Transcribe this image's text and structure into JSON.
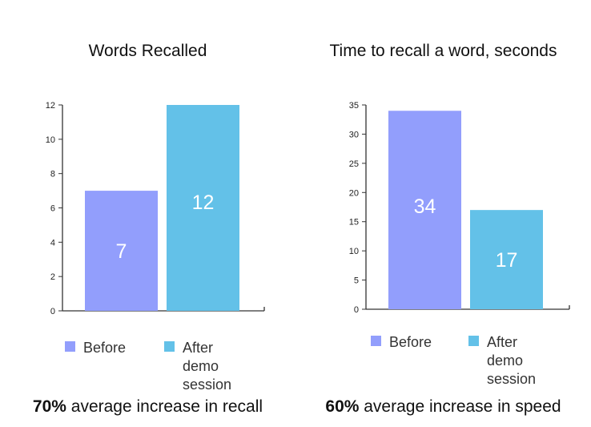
{
  "colors": {
    "before": "#929efc",
    "after": "#63c1e8",
    "axis": "#333333",
    "bar_label": "#ffffff"
  },
  "chart_data": [
    {
      "type": "bar",
      "title": "Words Recalled",
      "categories": [
        "Before",
        "After demo session"
      ],
      "values": [
        7,
        12
      ],
      "data_labels": [
        "7",
        "12"
      ],
      "ylim": [
        0,
        12
      ],
      "yticks": [
        0,
        2,
        4,
        6,
        8,
        10,
        12
      ],
      "xlabel": "",
      "ylabel": "",
      "legend": [
        "Before",
        "After demo session"
      ],
      "legend_placement": "bottom",
      "grid": false
    },
    {
      "type": "bar",
      "title": "Time to recall a word, seconds",
      "categories": [
        "Before",
        "After demo session"
      ],
      "values": [
        34,
        17
      ],
      "data_labels": [
        "34",
        "17"
      ],
      "ylim": [
        0,
        35
      ],
      "yticks": [
        0,
        5,
        10,
        15,
        20,
        25,
        30,
        35
      ],
      "xlabel": "",
      "ylabel": "",
      "legend": [
        "Before",
        "After demo session"
      ],
      "legend_placement": "bottom",
      "grid": false
    }
  ],
  "summaries": [
    {
      "bold": "70%",
      "rest": " average increase in recall"
    },
    {
      "bold": "60%",
      "rest": " average increase in speed"
    }
  ],
  "legend_labels": {
    "before": "Before",
    "after_line1": "After demo",
    "after_line2": "session"
  }
}
